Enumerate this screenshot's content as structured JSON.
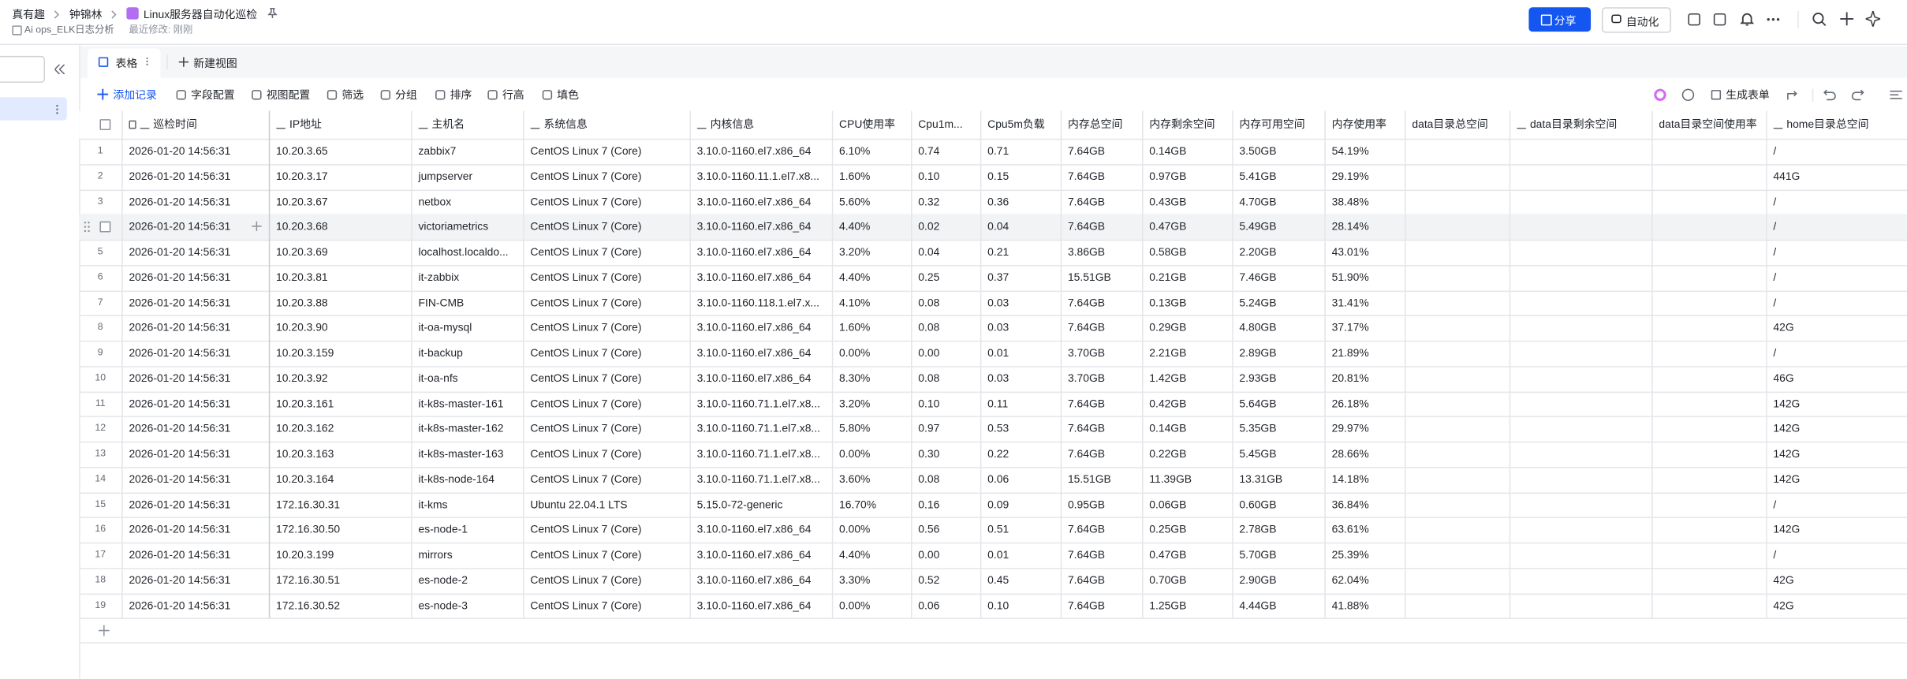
{
  "header": {
    "breadcrumb": [
      "真有趣",
      "钟锦林",
      "Linux服务器自动化巡检"
    ],
    "subtitle": "Ai ops_ELK日志分析",
    "last_modified": "最近修改: 刚刚",
    "buttons": [
      "分享",
      "自动化"
    ]
  },
  "tabs": [
    "表格",
    "新建视图"
  ],
  "toolbar": {
    "left": [
      "添加记录",
      "字段配置",
      "视图配置",
      "筛选",
      "分组",
      "排序",
      "行高",
      "填色"
    ],
    "right": [
      "生成表单"
    ]
  },
  "table": {
    "columns": [
      "巡检时间",
      "IP地址",
      "主机名",
      "系统信息",
      "内核信息",
      "CPU使用率",
      "Cpu1m...",
      "Cpu5m负载",
      "内存总空间",
      "内存剩余空间",
      "内存可用空间",
      "内存使用率",
      "data目录总空间",
      "data目录剩余空间",
      "data目录空间使用率",
      "home目录总空间"
    ],
    "rows": [
      {
        "no": 1,
        "cells": [
          "2026-01-20 14:56:31",
          "10.20.3.65",
          "zabbix7",
          "CentOS Linux 7 (Core)",
          "3.10.0-1160.el7.x86_64",
          "6.10%",
          "0.74",
          "0.71",
          "7.64GB",
          "0.14GB",
          "3.50GB",
          "54.19%",
          null,
          null,
          null,
          "/"
        ]
      },
      {
        "no": 2,
        "cells": [
          "2026-01-20 14:56:31",
          "10.20.3.17",
          "jumpserver",
          "CentOS Linux 7 (Core)",
          "3.10.0-1160.11.1.el7.x8...",
          "1.60%",
          "0.10",
          "0.15",
          "7.64GB",
          "0.97GB",
          "5.41GB",
          "29.19%",
          null,
          null,
          null,
          "441G"
        ]
      },
      {
        "no": 3,
        "cells": [
          "2026-01-20 14:56:31",
          "10.20.3.67",
          "netbox",
          "CentOS Linux 7 (Core)",
          "3.10.0-1160.el7.x86_64",
          "5.60%",
          "0.32",
          "0.36",
          "7.64GB",
          "0.43GB",
          "4.70GB",
          "38.48%",
          null,
          null,
          null,
          "/"
        ]
      },
      {
        "no": 4,
        "cells": [
          "2026-01-20 14:56:31",
          "10.20.3.68",
          "victoriametrics",
          "CentOS Linux 7 (Core)",
          "3.10.0-1160.el7.x86_64",
          "4.40%",
          "0.02",
          "0.04",
          "7.64GB",
          "0.47GB",
          "5.49GB",
          "28.14%",
          null,
          null,
          null,
          "/"
        ]
      },
      {
        "no": 5,
        "cells": [
          "2026-01-20 14:56:31",
          "10.20.3.69",
          "localhost.localdo...",
          "CentOS Linux 7 (Core)",
          "3.10.0-1160.el7.x86_64",
          "3.20%",
          "0.04",
          "0.21",
          "3.86GB",
          "0.58GB",
          "2.20GB",
          "43.01%",
          null,
          null,
          null,
          "/"
        ]
      },
      {
        "no": 6,
        "cells": [
          "2026-01-20 14:56:31",
          "10.20.3.81",
          "it-zabbix",
          "CentOS Linux 7 (Core)",
          "3.10.0-1160.el7.x86_64",
          "4.40%",
          "0.25",
          "0.37",
          "15.51GB",
          "0.21GB",
          "7.46GB",
          "51.90%",
          null,
          null,
          null,
          "/"
        ]
      },
      {
        "no": 7,
        "cells": [
          "2026-01-20 14:56:31",
          "10.20.3.88",
          "FIN-CMB",
          "CentOS Linux 7 (Core)",
          "3.10.0-1160.118.1.el7.x...",
          "4.10%",
          "0.08",
          "0.03",
          "7.64GB",
          "0.13GB",
          "5.24GB",
          "31.41%",
          null,
          null,
          null,
          "/"
        ]
      },
      {
        "no": 8,
        "cells": [
          "2026-01-20 14:56:31",
          "10.20.3.90",
          "it-oa-mysql",
          "CentOS Linux 7 (Core)",
          "3.10.0-1160.el7.x86_64",
          "1.60%",
          "0.08",
          "0.03",
          "7.64GB",
          "0.29GB",
          "4.80GB",
          "37.17%",
          null,
          null,
          null,
          "42G"
        ]
      },
      {
        "no": 9,
        "cells": [
          "2026-01-20 14:56:31",
          "10.20.3.159",
          "it-backup",
          "CentOS Linux 7 (Core)",
          "3.10.0-1160.el7.x86_64",
          "0.00%",
          "0.00",
          "0.01",
          "3.70GB",
          "2.21GB",
          "2.89GB",
          "21.89%",
          null,
          null,
          null,
          "/"
        ]
      },
      {
        "no": 10,
        "cells": [
          "2026-01-20 14:56:31",
          "10.20.3.92",
          "it-oa-nfs",
          "CentOS Linux 7 (Core)",
          "3.10.0-1160.el7.x86_64",
          "8.30%",
          "0.08",
          "0.03",
          "3.70GB",
          "1.42GB",
          "2.93GB",
          "20.81%",
          null,
          null,
          null,
          "46G"
        ]
      },
      {
        "no": 11,
        "cells": [
          "2026-01-20 14:56:31",
          "10.20.3.161",
          "it-k8s-master-161",
          "CentOS Linux 7 (Core)",
          "3.10.0-1160.71.1.el7.x8...",
          "3.20%",
          "0.10",
          "0.11",
          "7.64GB",
          "0.42GB",
          "5.64GB",
          "26.18%",
          null,
          null,
          null,
          "142G"
        ]
      },
      {
        "no": 12,
        "cells": [
          "2026-01-20 14:56:31",
          "10.20.3.162",
          "it-k8s-master-162",
          "CentOS Linux 7 (Core)",
          "3.10.0-1160.71.1.el7.x8...",
          "5.80%",
          "0.97",
          "0.53",
          "7.64GB",
          "0.14GB",
          "5.35GB",
          "29.97%",
          null,
          null,
          null,
          "142G"
        ]
      },
      {
        "no": 13,
        "cells": [
          "2026-01-20 14:56:31",
          "10.20.3.163",
          "it-k8s-master-163",
          "CentOS Linux 7 (Core)",
          "3.10.0-1160.71.1.el7.x8...",
          "0.00%",
          "0.30",
          "0.22",
          "7.64GB",
          "0.22GB",
          "5.45GB",
          "28.66%",
          null,
          null,
          null,
          "142G"
        ]
      },
      {
        "no": 14,
        "cells": [
          "2026-01-20 14:56:31",
          "10.20.3.164",
          "it-k8s-node-164",
          "CentOS Linux 7 (Core)",
          "3.10.0-1160.71.1.el7.x8...",
          "3.60%",
          "0.08",
          "0.06",
          "15.51GB",
          "11.39GB",
          "13.31GB",
          "14.18%",
          null,
          null,
          null,
          "142G"
        ]
      },
      {
        "no": 15,
        "cells": [
          "2026-01-20 14:56:31",
          "172.16.30.31",
          "it-kms",
          "Ubuntu 22.04.1 LTS",
          "5.15.0-72-generic",
          "16.70%",
          "0.16",
          "0.09",
          "0.95GB",
          "0.06GB",
          "0.60GB",
          "36.84%",
          null,
          null,
          null,
          "/"
        ]
      },
      {
        "no": 16,
        "cells": [
          "2026-01-20 14:56:31",
          "172.16.30.50",
          "es-node-1",
          "CentOS Linux 7 (Core)",
          "3.10.0-1160.el7.x86_64",
          "0.00%",
          "0.56",
          "0.51",
          "7.64GB",
          "0.25GB",
          "2.78GB",
          "63.61%",
          null,
          null,
          null,
          "142G"
        ]
      },
      {
        "no": 17,
        "cells": [
          "2026-01-20 14:56:31",
          "10.20.3.199",
          "mirrors",
          "CentOS Linux 7 (Core)",
          "3.10.0-1160.el7.x86_64",
          "4.40%",
          "0.00",
          "0.01",
          "7.64GB",
          "0.47GB",
          "5.70GB",
          "25.39%",
          null,
          null,
          null,
          "/"
        ]
      },
      {
        "no": 18,
        "cells": [
          "2026-01-20 14:56:31",
          "172.16.30.51",
          "es-node-2",
          "CentOS Linux 7 (Core)",
          "3.10.0-1160.el7.x86_64",
          "3.30%",
          "0.52",
          "0.45",
          "7.64GB",
          "0.70GB",
          "2.90GB",
          "62.04%",
          null,
          null,
          null,
          "42G"
        ]
      },
      {
        "no": 19,
        "cells": [
          "2026-01-20 14:56:31",
          "172.16.30.52",
          "es-node-3",
          "CentOS Linux 7 (Core)",
          "3.10.0-1160.el7.x86_64",
          "0.00%",
          "0.06",
          "0.10",
          "7.64GB",
          "1.25GB",
          "4.44GB",
          "41.88%",
          null,
          null,
          null,
          "42G"
        ]
      }
    ]
  }
}
